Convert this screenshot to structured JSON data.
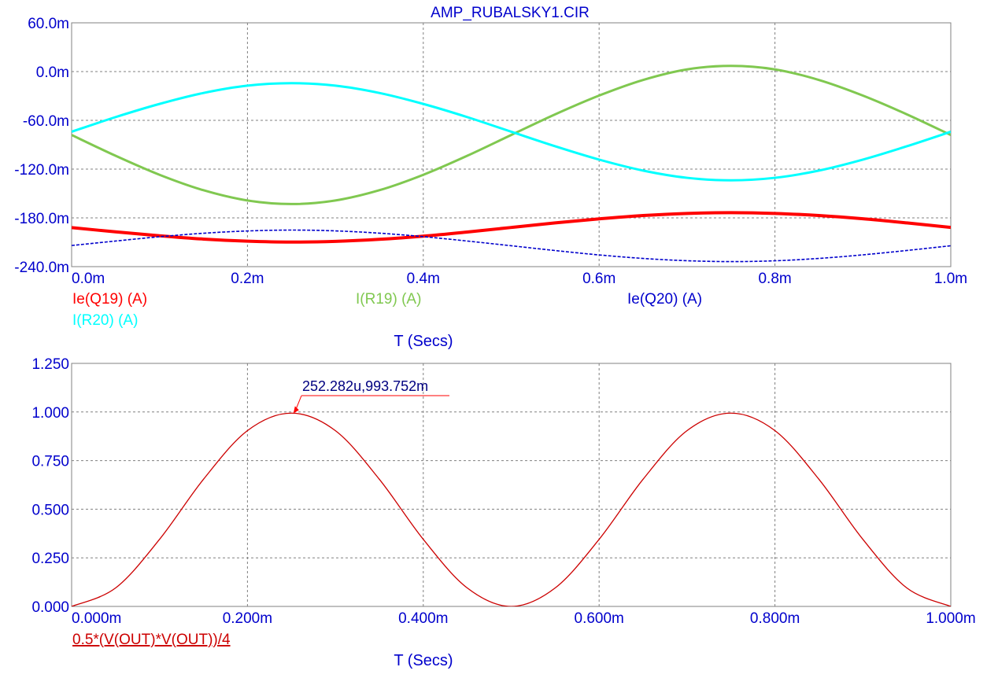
{
  "title": "AMP_RUBALSKY1.CIR",
  "colors": {
    "axis_text": "#0000cc",
    "title": "#0000cc",
    "grid": "#808080",
    "frame": "#808080",
    "annotation": "#000080",
    "annotation_arrow": "#ff0000"
  },
  "chart_data": [
    {
      "type": "line",
      "xlabel": "T (Secs)",
      "xlim": [
        0,
        1.0
      ],
      "ylim": [
        -240,
        60
      ],
      "grid": true,
      "x_tick_labels": [
        "0.0m",
        "0.2m",
        "0.4m",
        "0.6m",
        "0.8m",
        "1.0m"
      ],
      "y_tick_labels": [
        "60.0m",
        "0.0m",
        "-60.0m",
        "-120.0m",
        "-180.0m",
        "-240.0m"
      ],
      "x_ticks": [
        0,
        0.2,
        0.4,
        0.6,
        0.8,
        1.0
      ],
      "y_ticks": [
        60,
        0,
        -60,
        -120,
        -180,
        -240
      ],
      "x": [
        0,
        0.05,
        0.1,
        0.15,
        0.2,
        0.25,
        0.3,
        0.35,
        0.4,
        0.45,
        0.5,
        0.55,
        0.6,
        0.65,
        0.7,
        0.75,
        0.8,
        0.85,
        0.9,
        0.95,
        1.0
      ],
      "series": [
        {
          "name": "Ie(Q19) (A)",
          "color": "#ff0000",
          "style": "solid-thick",
          "values": [
            -192.0,
            -197.2,
            -202.0,
            -206.1,
            -208.7,
            -209.8,
            -208.9,
            -206.4,
            -202.5,
            -197.4,
            -191.8,
            -186.2,
            -181.2,
            -177.1,
            -174.5,
            -173.6,
            -174.5,
            -177.1,
            -181.1,
            -186.2,
            -191.8
          ]
        },
        {
          "name": "I(R19) (A)",
          "color": "#80c850",
          "style": "solid",
          "values": [
            -78.0,
            -103.6,
            -127.0,
            -146.0,
            -158.6,
            -163.0,
            -158.6,
            -146.0,
            -127.0,
            -103.6,
            -78.0,
            -52.6,
            -29.5,
            -10.3,
            2.7,
            7.0,
            2.7,
            -10.3,
            -29.5,
            -52.6,
            -78.0
          ]
        },
        {
          "name": "Ie(Q20) (A)",
          "color": "#0000cc",
          "style": "dashed",
          "values": [
            -214.0,
            -208.5,
            -203.2,
            -198.9,
            -196.1,
            -195.0,
            -196.0,
            -198.8,
            -203.1,
            -208.5,
            -214.3,
            -220.2,
            -225.6,
            -229.9,
            -232.7,
            -233.8,
            -232.8,
            -229.9,
            -225.5,
            -220.1,
            -214.3
          ]
        },
        {
          "name": "I(R20) (A)",
          "color": "#00ffff",
          "style": "solid",
          "values": [
            -74.0,
            -56.0,
            -39.8,
            -26.3,
            -17.3,
            -14.3,
            -17.3,
            -26.3,
            -39.8,
            -56.0,
            -74.0,
            -91.9,
            -108.3,
            -121.8,
            -130.7,
            -133.8,
            -130.7,
            -121.8,
            -108.3,
            -91.9,
            -74.0
          ]
        }
      ]
    },
    {
      "type": "line",
      "xlabel": "T (Secs)",
      "xlim": [
        0,
        1.0
      ],
      "ylim": [
        0,
        1.25
      ],
      "grid": true,
      "x_tick_labels": [
        "0.000m",
        "0.200m",
        "0.400m",
        "0.600m",
        "0.800m",
        "1.000m"
      ],
      "y_tick_labels": [
        "1.250",
        "1.000",
        "0.750",
        "0.500",
        "0.250",
        "0.000"
      ],
      "x_ticks": [
        0,
        0.2,
        0.4,
        0.6,
        0.8,
        1.0
      ],
      "y_ticks": [
        1.25,
        1.0,
        0.75,
        0.5,
        0.25,
        0
      ],
      "x": [
        0,
        0.05,
        0.1,
        0.15,
        0.2,
        0.25,
        0.3,
        0.35,
        0.4,
        0.45,
        0.5,
        0.55,
        0.6,
        0.65,
        0.7,
        0.75,
        0.8,
        0.85,
        0.9,
        0.95,
        1.0
      ],
      "series": [
        {
          "name": "0.5*(V(OUT)*V(OUT))/4",
          "color": "#cc0000",
          "style": "solid-thin",
          "values": [
            0,
            0.095,
            0.345,
            0.654,
            0.904,
            0.994,
            0.904,
            0.654,
            0.345,
            0.095,
            0,
            0.095,
            0.345,
            0.654,
            0.904,
            0.994,
            0.904,
            0.654,
            0.345,
            0.095,
            0
          ]
        }
      ],
      "annotation": {
        "text": "252.282u,993.752m",
        "x": 0.252282,
        "y": 0.993752
      }
    }
  ]
}
